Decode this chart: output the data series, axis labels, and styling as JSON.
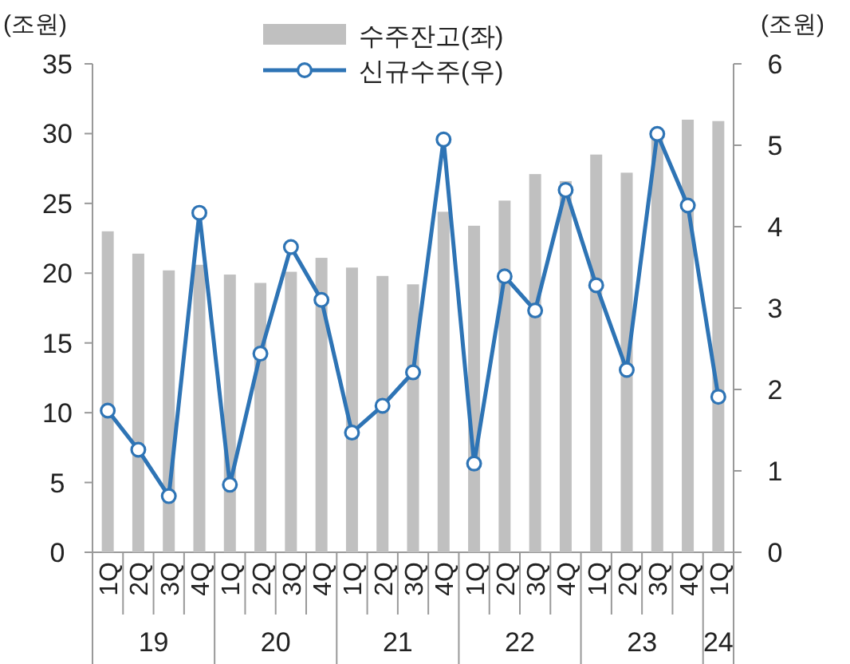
{
  "chart_data": {
    "type": "bar",
    "categories": [
      "1Q",
      "2Q",
      "3Q",
      "4Q",
      "1Q",
      "2Q",
      "3Q",
      "4Q",
      "1Q",
      "2Q",
      "3Q",
      "4Q",
      "1Q",
      "2Q",
      "3Q",
      "4Q",
      "1Q",
      "2Q",
      "3Q",
      "4Q",
      "1Q"
    ],
    "series": [
      {
        "name": "수주잔고(좌)",
        "color": "#c0c0c0",
        "values": [
          23.0,
          21.4,
          20.2,
          20.6,
          19.9,
          19.3,
          20.1,
          21.1,
          20.4,
          19.8,
          19.2,
          24.4,
          23.4,
          25.2,
          27.1,
          26.6,
          28.5,
          27.2,
          29.8,
          31.0,
          30.9
        ]
      },
      {
        "name": "신규수주(우)",
        "type": "line",
        "axis": "y2",
        "color": "#2e74b5",
        "marker": "circle",
        "values": [
          1.74,
          1.26,
          0.69,
          4.17,
          0.83,
          2.44,
          3.75,
          3.1,
          1.47,
          1.8,
          2.21,
          5.07,
          1.09,
          3.39,
          2.97,
          4.45,
          3.28,
          2.24,
          5.14,
          4.26,
          1.91
        ]
      }
    ],
    "ylabel": "(조원)",
    "y2label": "(조원)",
    "ylim": [
      0,
      35
    ],
    "yticks": [
      0,
      5,
      10,
      15,
      20,
      25,
      30,
      35
    ],
    "y2lim": [
      0,
      6
    ],
    "y2ticks": [
      0,
      1,
      2,
      3,
      4,
      5,
      6
    ],
    "annotations": [
      "19",
      "20",
      "21",
      "22",
      "23",
      "24"
    ],
    "legend": "top",
    "grid": false
  }
}
